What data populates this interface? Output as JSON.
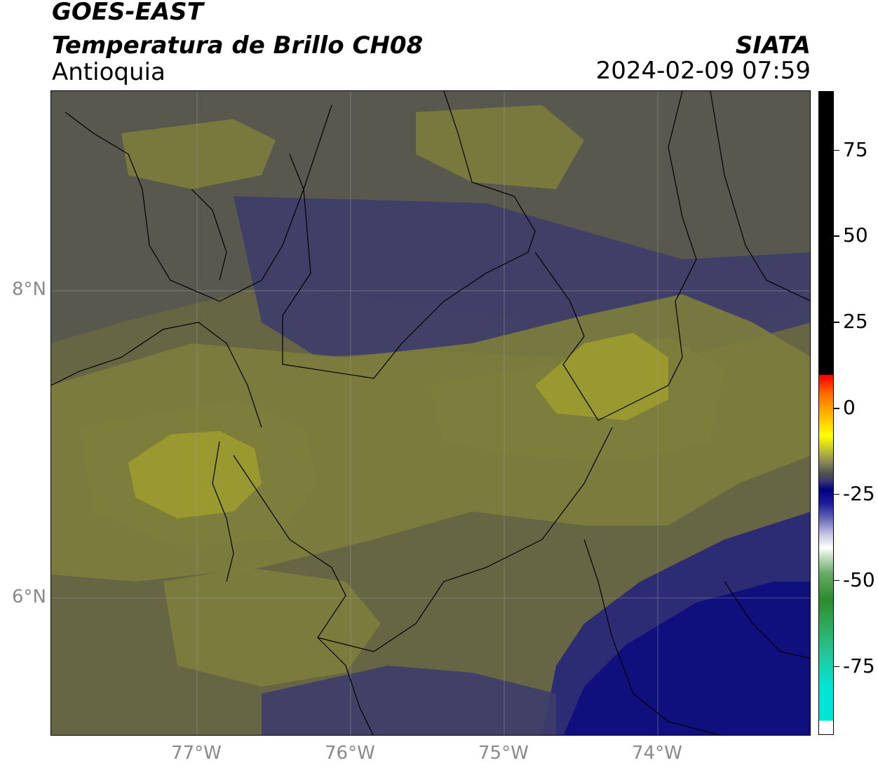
{
  "header": {
    "satellite": "GOES-EAST",
    "product": "Temperatura de Brillo CH08",
    "region": "Antioquia",
    "agency": "SIATA",
    "datetime": "2024-02-09 07:59"
  },
  "map": {
    "lon_range": [
      -77.95,
      -73.0
    ],
    "lat_range": [
      5.1,
      9.3
    ],
    "latitude_labels": [
      {
        "value": 8,
        "label": "8°N"
      },
      {
        "value": 6,
        "label": "6°N"
      }
    ],
    "longitude_labels": [
      {
        "value": -77,
        "label": "77°W"
      },
      {
        "value": -76,
        "label": "76°W"
      },
      {
        "value": -75,
        "label": "75°W"
      },
      {
        "value": -74,
        "label": "74°W"
      }
    ],
    "gridlines": true,
    "colors": {
      "olive_warm": "#666645",
      "olive": "#7d7d3c",
      "yellow_olive": "#9c9c2d",
      "gray_olive": "#57574f",
      "slate_blue": "#3d3d6a",
      "dark_blue": "#262679",
      "navy": "#0c0c80",
      "grid": "#9a9a9a"
    }
  },
  "colorbar": {
    "ticks": [
      {
        "value": 75,
        "label": "75"
      },
      {
        "value": 50,
        "label": "50"
      },
      {
        "value": 25,
        "label": "25"
      },
      {
        "value": 0,
        "label": "0"
      },
      {
        "value": -25,
        "label": "-25"
      },
      {
        "value": -50,
        "label": "-50"
      },
      {
        "value": -75,
        "label": "-75"
      }
    ]
  }
}
